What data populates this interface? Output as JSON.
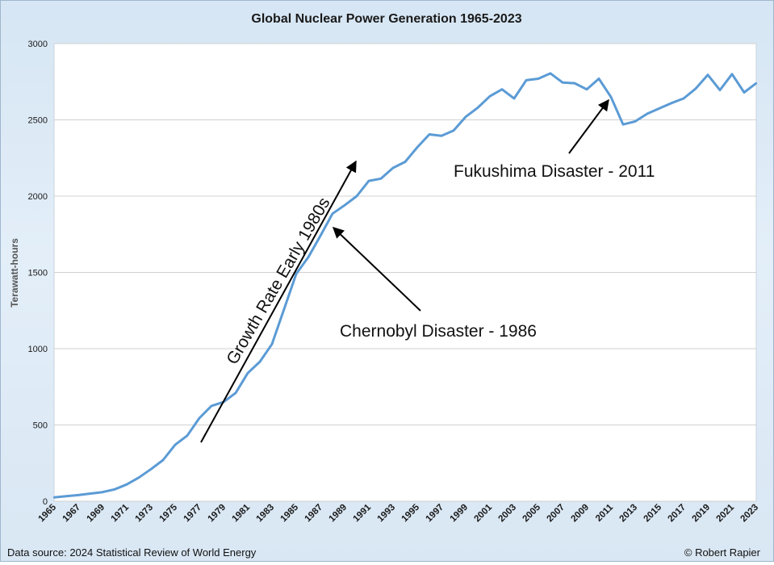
{
  "chart_data": {
    "type": "line",
    "title": "Global Nuclear Power Generation 1965-2023",
    "xlabel": "",
    "ylabel": "Terawatt-hours",
    "xlim": [
      1965,
      2023
    ],
    "ylim": [
      0,
      3000
    ],
    "yticks": [
      0,
      500,
      1000,
      1500,
      2000,
      2500,
      3000
    ],
    "xtick_labels": [
      "1965",
      "1967",
      "1969",
      "1971",
      "1973",
      "1975",
      "1977",
      "1979",
      "1981",
      "1983",
      "1985",
      "1987",
      "1989",
      "1991",
      "1993",
      "1995",
      "1997",
      "1999",
      "2001",
      "2003",
      "2005",
      "2007",
      "2009",
      "2011",
      "2013",
      "2015",
      "2017",
      "2019",
      "2021",
      "2023"
    ],
    "series": [
      {
        "name": "Nuclear generation",
        "color": "#5b9bd5",
        "x": [
          1965,
          1966,
          1967,
          1968,
          1969,
          1970,
          1971,
          1972,
          1973,
          1974,
          1975,
          1976,
          1977,
          1978,
          1979,
          1980,
          1981,
          1982,
          1983,
          1984,
          1985,
          1986,
          1987,
          1988,
          1989,
          1990,
          1991,
          1992,
          1993,
          1994,
          1995,
          1996,
          1997,
          1998,
          1999,
          2000,
          2001,
          2002,
          2003,
          2004,
          2005,
          2006,
          2007,
          2008,
          2009,
          2010,
          2011,
          2012,
          2013,
          2014,
          2015,
          2016,
          2017,
          2018,
          2019,
          2020,
          2021,
          2022,
          2023
        ],
        "values": [
          25,
          33,
          40,
          50,
          60,
          78,
          110,
          155,
          210,
          270,
          370,
          430,
          545,
          625,
          650,
          710,
          840,
          915,
          1030,
          1260,
          1490,
          1600,
          1740,
          1885,
          1940,
          2000,
          2100,
          2115,
          2185,
          2225,
          2320,
          2405,
          2395,
          2430,
          2520,
          2580,
          2655,
          2700,
          2640,
          2760,
          2770,
          2805,
          2745,
          2740,
          2700,
          2770,
          2650,
          2470,
          2490,
          2540,
          2575,
          2610,
          2640,
          2705,
          2795,
          2695,
          2800,
          2680,
          2740
        ]
      }
    ],
    "annotations": [
      {
        "text": "Growth Rate Early 1980s",
        "arrow": true
      },
      {
        "text": "Chernobyl Disaster - 1986",
        "arrow": true
      },
      {
        "text": "Fukushima Disaster - 2011",
        "arrow": true
      }
    ],
    "grid": true,
    "legend": "none"
  },
  "footer": {
    "source": "Data source: 2024 Statistical Review of World Energy",
    "credit": "© Robert Rapier"
  }
}
